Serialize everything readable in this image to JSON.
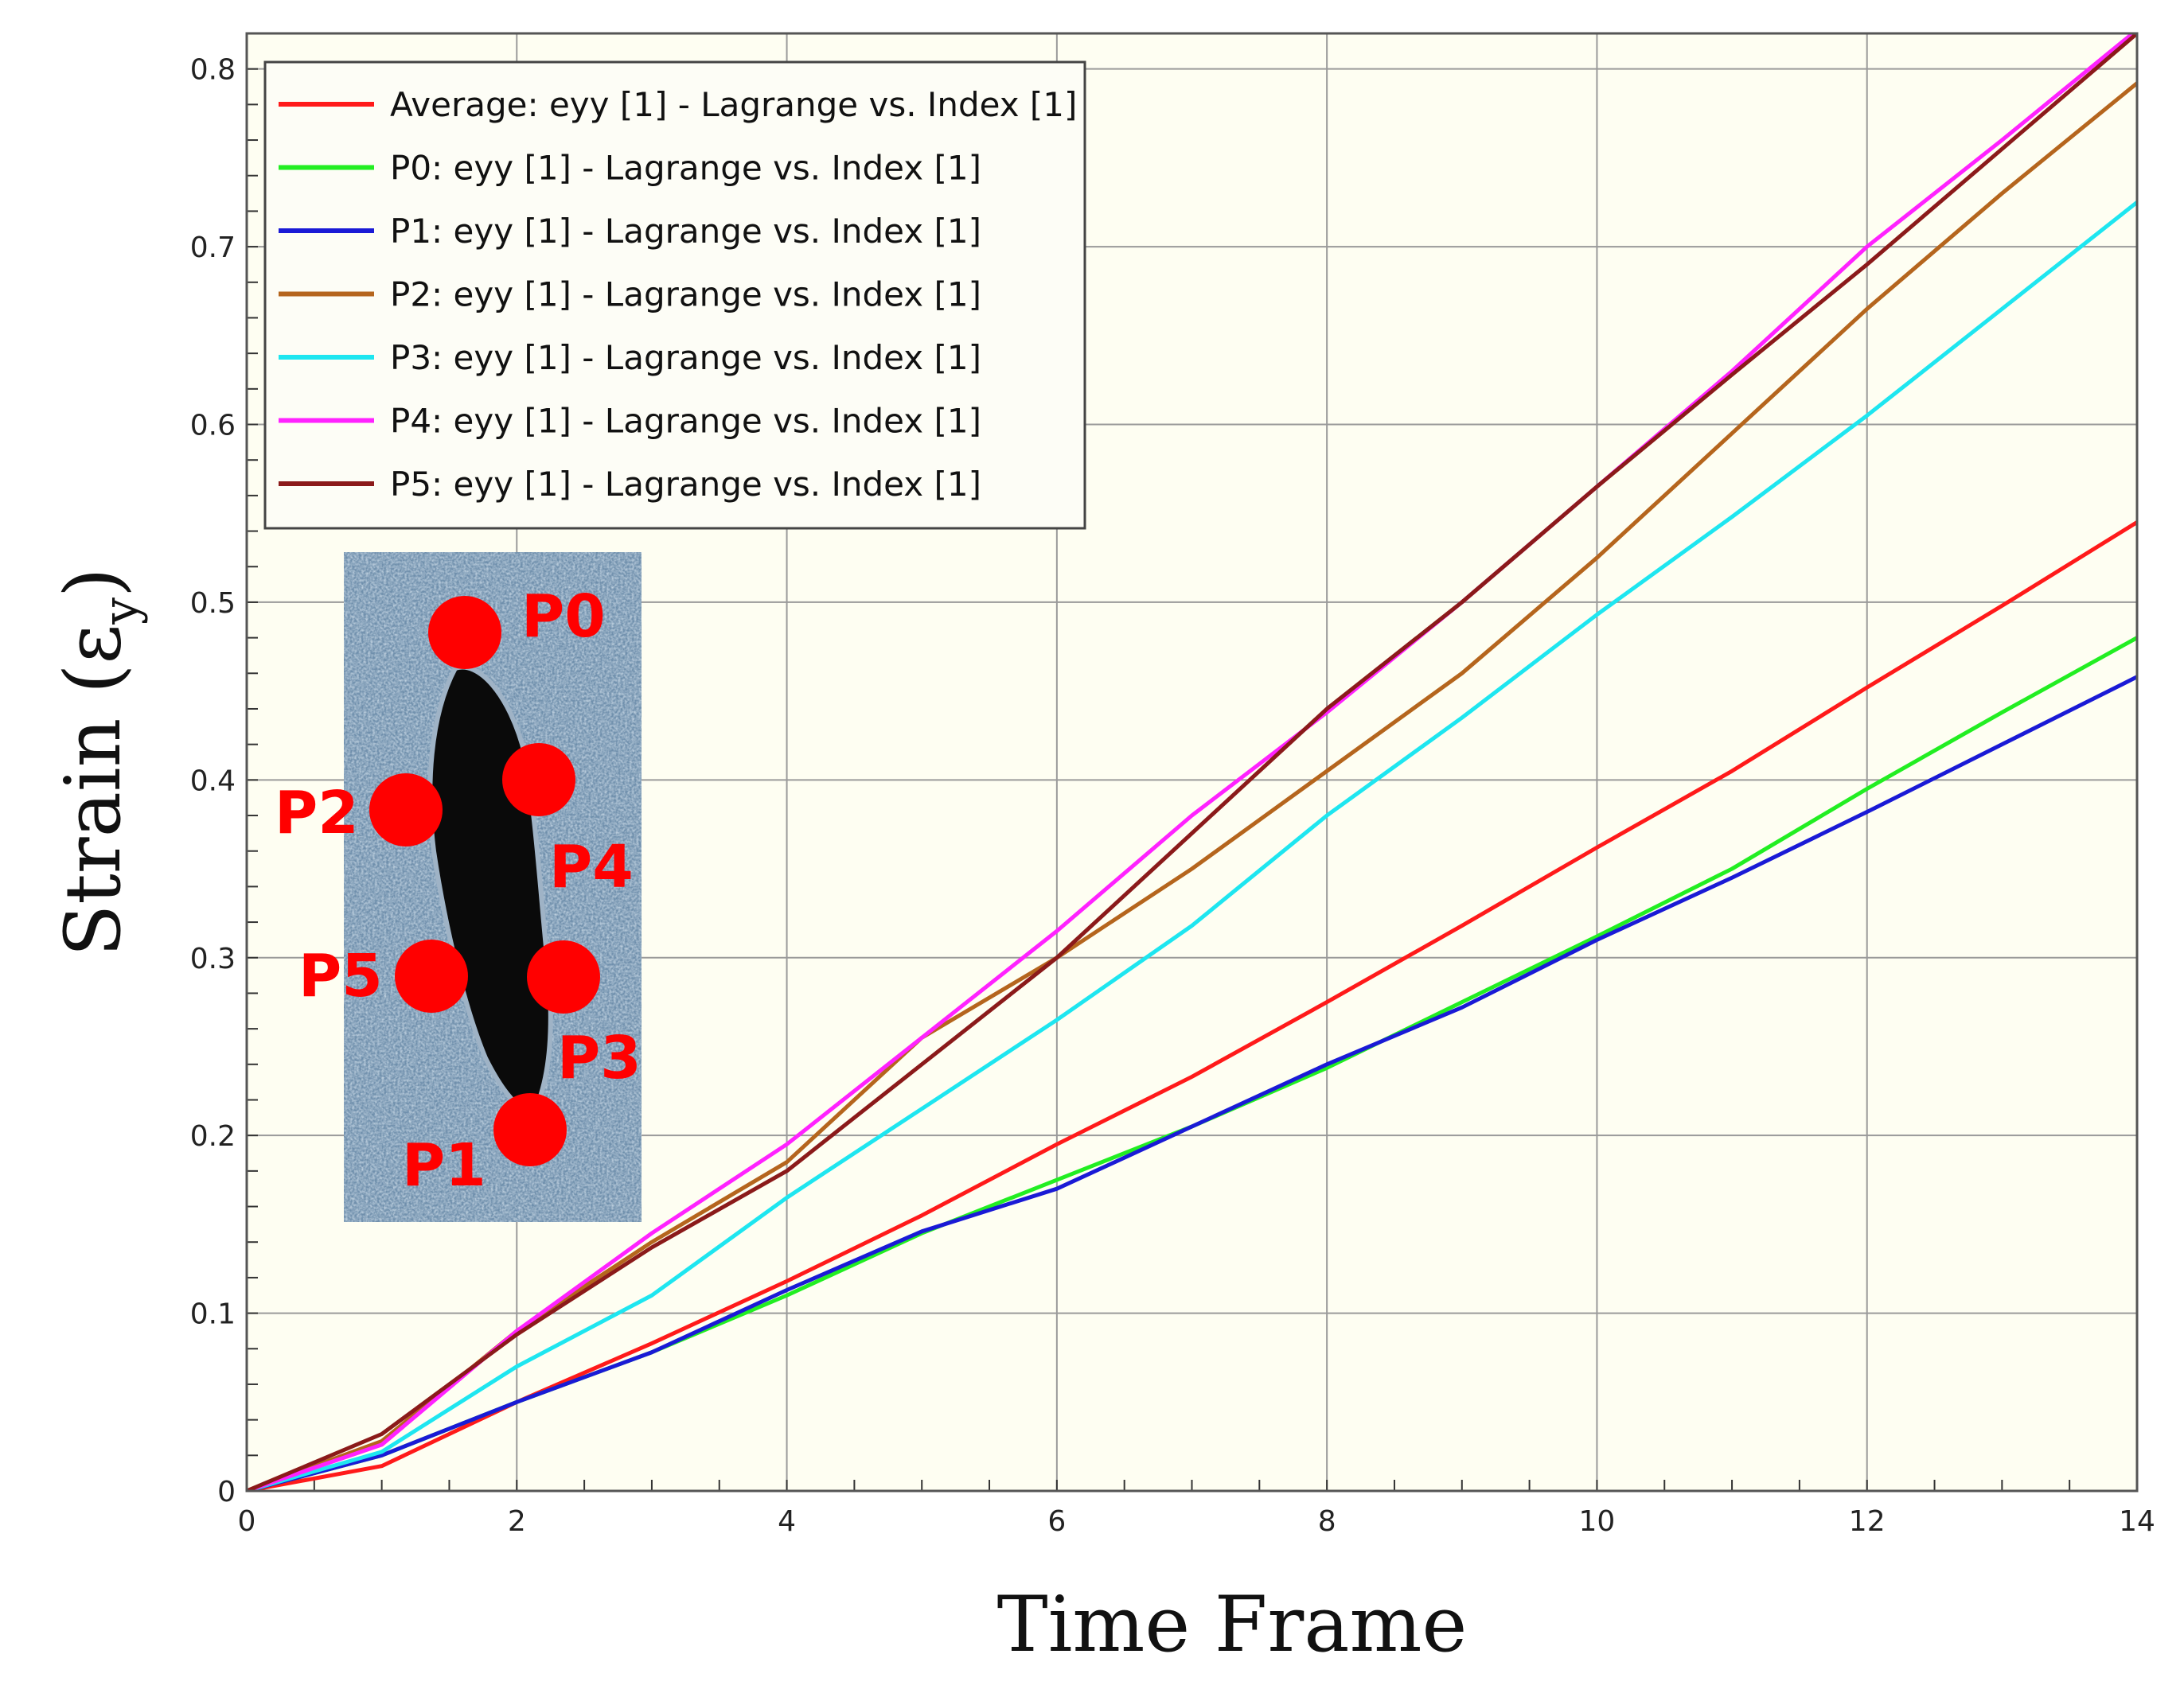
{
  "chart_data": {
    "type": "line",
    "title": "",
    "xlabel": "Time Frame",
    "ylabel_main": "Strain (ε",
    "ylabel_sub": "y",
    "ylabel_close": ")",
    "xlim": [
      0,
      14
    ],
    "ylim": [
      0,
      0.8
    ],
    "xticks": [
      "0",
      "2",
      "4",
      "6",
      "8",
      "10",
      "12",
      "14"
    ],
    "yticks": [
      "0",
      "0.1",
      "0.2",
      "0.3",
      "0.4",
      "0.5",
      "0.6",
      "0.7",
      "0.8"
    ],
    "grid": true,
    "legend_position": "top-left",
    "x": [
      0,
      1,
      2,
      3,
      4,
      5,
      6,
      7,
      8,
      9,
      10,
      11,
      12,
      13,
      14
    ],
    "series": [
      {
        "name": "Average: eyy [1] - Lagrange vs. Index [1]",
        "color": "#ff1a1a",
        "values": [
          0,
          0.014,
          0.05,
          0.083,
          0.118,
          0.155,
          0.195,
          0.233,
          0.275,
          0.318,
          0.362,
          0.405,
          0.452,
          0.498,
          0.545
        ]
      },
      {
        "name": "P0: eyy [1] - Lagrange vs. Index [1]",
        "color": "#22ee22",
        "values": [
          0,
          0.02,
          0.05,
          0.078,
          0.11,
          0.145,
          0.175,
          0.205,
          0.238,
          0.275,
          0.312,
          0.35,
          0.395,
          0.438,
          0.48
        ]
      },
      {
        "name": "P1: eyy [1] - Lagrange vs. Index [1]",
        "color": "#1a1ad6",
        "values": [
          0,
          0.02,
          0.05,
          0.078,
          0.113,
          0.146,
          0.17,
          0.205,
          0.24,
          0.272,
          0.31,
          0.345,
          0.382,
          0.42,
          0.458
        ]
      },
      {
        "name": "P2: eyy [1] - Lagrange vs. Index [1]",
        "color": "#b5651d",
        "values": [
          0,
          0.028,
          0.09,
          0.14,
          0.185,
          0.255,
          0.3,
          0.35,
          0.405,
          0.46,
          0.525,
          0.595,
          0.665,
          0.73,
          0.792
        ]
      },
      {
        "name": "P3: eyy [1] - Lagrange vs. Index [1]",
        "color": "#1ee6f0",
        "values": [
          0,
          0.022,
          0.07,
          0.11,
          0.165,
          0.215,
          0.265,
          0.318,
          0.38,
          0.435,
          0.493,
          0.548,
          0.605,
          0.665,
          0.725
        ]
      },
      {
        "name": "P4: eyy [1] - Lagrange vs. Index [1]",
        "color": "#ff22ff",
        "values": [
          0,
          0.026,
          0.09,
          0.145,
          0.195,
          0.255,
          0.315,
          0.38,
          0.438,
          0.5,
          0.565,
          0.63,
          0.7,
          0.76,
          0.822
        ]
      },
      {
        "name": "P5: eyy [1] - Lagrange vs. Index [1]",
        "color": "#8b1a1a",
        "values": [
          0,
          0.032,
          0.088,
          0.137,
          0.18,
          0.24,
          0.3,
          0.37,
          0.44,
          0.5,
          0.565,
          0.628,
          0.69,
          0.755,
          0.82
        ]
      }
    ],
    "inset": {
      "description_icon": "crack-specimen-photo",
      "markers": [
        {
          "label": "P0",
          "color": "#ff0000"
        },
        {
          "label": "P1",
          "color": "#ff0000"
        },
        {
          "label": "P2",
          "color": "#ff0000"
        },
        {
          "label": "P3",
          "color": "#ff0000"
        },
        {
          "label": "P4",
          "color": "#ff0000"
        },
        {
          "label": "P5",
          "color": "#ff0000"
        }
      ]
    },
    "colors": {
      "plot_background": "#fefef2",
      "grid": "#9a9a9a",
      "frame": "#555555"
    }
  }
}
